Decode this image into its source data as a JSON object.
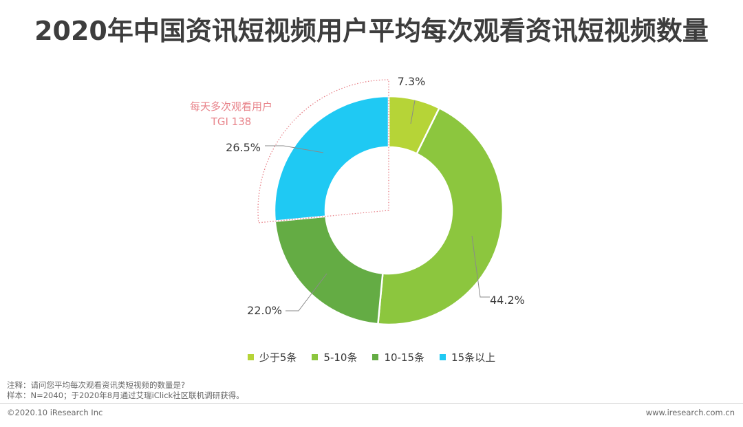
{
  "title": "2020年中国资讯短视频用户平均每次观看资讯短视频数量",
  "chart_data": {
    "type": "donut",
    "title": "2020年中国资讯短视频用户平均每次观看资讯短视频数量",
    "slices": [
      {
        "name": "少于5条",
        "value": 7.3,
        "label": "7.3%",
        "color": "#b6d437"
      },
      {
        "name": "5-10条",
        "value": 44.2,
        "label": "44.2%",
        "color": "#8cc63e"
      },
      {
        "name": "10-15条",
        "value": 22.0,
        "label": "22.0%",
        "color": "#64ac44"
      },
      {
        "name": "15条以上",
        "value": 26.5,
        "label": "26.5%",
        "color": "#1fc9f3"
      }
    ],
    "legend_position": "bottom",
    "annotation": {
      "line1": "每天多次观看用户",
      "line2": "TGI 138",
      "color": "#e8838a"
    }
  },
  "notes": {
    "line1": "注释：请问您平均每次观看资讯类短视频的数量是?",
    "line2": "样本：N=2040；于2020年8月通过艾瑞iClick社区联机调研获得。"
  },
  "footer": {
    "copyright": "©2020.10 iResearch Inc",
    "website": "www.iresearch.com.cn"
  }
}
